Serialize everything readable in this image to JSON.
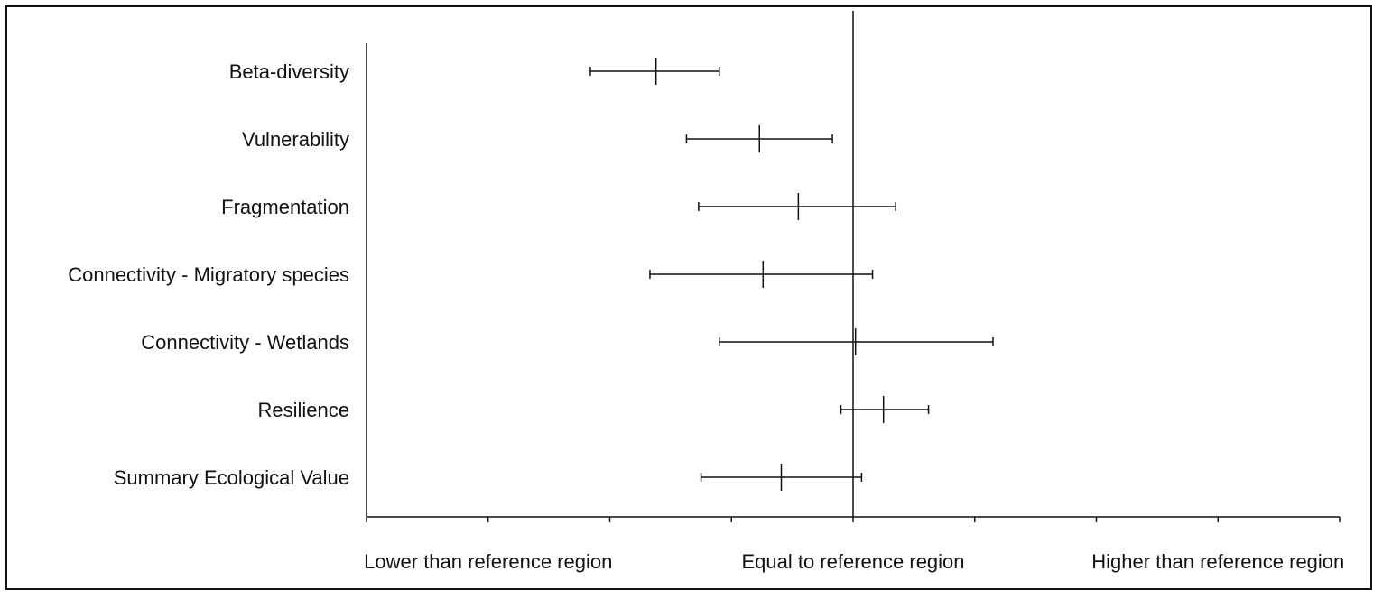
{
  "chart_data": {
    "type": "forest",
    "title": "",
    "xlabel": "",
    "ylabel": "",
    "xlim": [
      -4,
      4
    ],
    "reference_value": 0,
    "x_category_labels": [
      {
        "label": "Lower than reference region",
        "x": -3
      },
      {
        "label": "Equal to reference region",
        "x": 0
      },
      {
        "label": "Higher than reference region",
        "x": 3
      }
    ],
    "series": [
      {
        "name": "Beta-diversity",
        "estimate": -1.62,
        "lower": -2.16,
        "upper": -1.1
      },
      {
        "name": "Vulnerability",
        "estimate": -0.77,
        "lower": -1.37,
        "upper": -0.17
      },
      {
        "name": "Fragmentation",
        "estimate": -0.45,
        "lower": -1.27,
        "upper": 0.35
      },
      {
        "name": "Connectivity - Migratory species",
        "estimate": -0.74,
        "lower": -1.67,
        "upper": 0.16
      },
      {
        "name": "Connectivity - Wetlands",
        "estimate": 0.02,
        "lower": -1.1,
        "upper": 1.15
      },
      {
        "name": "Resilience",
        "estimate": 0.25,
        "lower": -0.1,
        "upper": 0.62
      },
      {
        "name": "Summary Ecological Value",
        "estimate": -0.59,
        "lower": -1.25,
        "upper": 0.07
      }
    ]
  }
}
